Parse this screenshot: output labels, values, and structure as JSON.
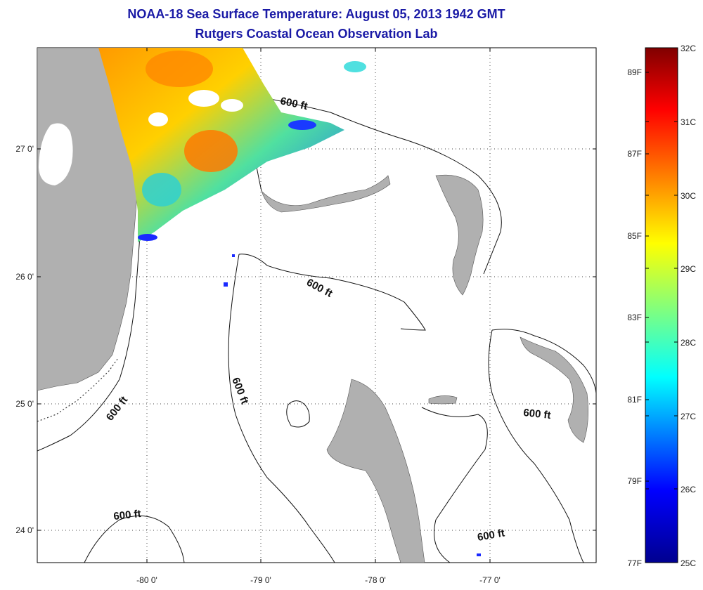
{
  "title": {
    "line1": "NOAA-18 Sea Surface Temperature:  August 05, 2013 1942 GMT",
    "line2": "Rutgers Coastal Ocean Observation Lab"
  },
  "axes": {
    "lat_labels": [
      "27 0'",
      "26 0'",
      "25 0'",
      "24 0'"
    ],
    "lon_labels": [
      "-80 0'",
      "-79 0'",
      "-78 0'",
      "-77 0'"
    ]
  },
  "isobath_label": "600 ft",
  "colorbar": {
    "c_labels": [
      "32C",
      "31C",
      "30C",
      "29C",
      "28C",
      "27C",
      "26C",
      "25C"
    ],
    "f_labels": [
      "89F",
      "87F",
      "85F",
      "83F",
      "81F",
      "79F",
      "77F"
    ],
    "colors": [
      "#00008f",
      "#0000ff",
      "#00ffff",
      "#ffff00",
      "#ff0000",
      "#800000"
    ]
  },
  "palette": {
    "land": "#b0b0b0",
    "title": "#1a1aa6"
  }
}
